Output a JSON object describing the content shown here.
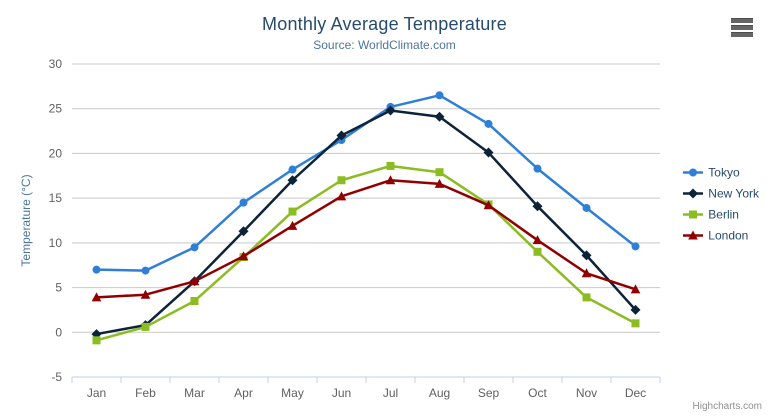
{
  "credit": {
    "label": "Highcharts.com"
  },
  "context_menu": {
    "tooltip": "Chart context menu"
  },
  "chart_data": {
    "type": "line",
    "title": "Monthly Average Temperature",
    "subtitle": "Source: WorldClimate.com",
    "xlabel": "",
    "ylabel": "Temperature (°C)",
    "categories": [
      "Jan",
      "Feb",
      "Mar",
      "Apr",
      "May",
      "Jun",
      "Jul",
      "Aug",
      "Sep",
      "Oct",
      "Nov",
      "Dec"
    ],
    "ylim": [
      -5,
      30
    ],
    "ytick_interval": 5,
    "grid": true,
    "legend_position": "right",
    "series": [
      {
        "name": "Tokyo",
        "color": "#2f7ed8",
        "marker": "circle",
        "values": [
          7.0,
          6.9,
          9.5,
          14.5,
          18.2,
          21.5,
          25.2,
          26.5,
          23.3,
          18.3,
          13.9,
          9.6
        ]
      },
      {
        "name": "New York",
        "color": "#0d233a",
        "marker": "diamond",
        "values": [
          -0.2,
          0.8,
          5.7,
          11.3,
          17.0,
          22.0,
          24.8,
          24.1,
          20.1,
          14.1,
          8.6,
          2.5
        ]
      },
      {
        "name": "Berlin",
        "color": "#8bbc21",
        "marker": "square",
        "values": [
          -0.9,
          0.6,
          3.5,
          8.4,
          13.5,
          17.0,
          18.6,
          17.9,
          14.3,
          9.0,
          3.9,
          1.0
        ]
      },
      {
        "name": "London",
        "color": "#910000",
        "marker": "triangle",
        "values": [
          3.9,
          4.2,
          5.7,
          8.5,
          11.9,
          15.2,
          17.0,
          16.6,
          14.2,
          10.3,
          6.6,
          4.8
        ]
      }
    ],
    "styles": {
      "grid_color": "#c9c9c9",
      "axis_line_color": "#c0d0e0",
      "tick_label_color": "#606060",
      "axis_title_color": "#4d759e",
      "title_color": "#274b6d",
      "subtitle_color": "#4d759e",
      "legend_text_color": "#274b6d"
    }
  }
}
